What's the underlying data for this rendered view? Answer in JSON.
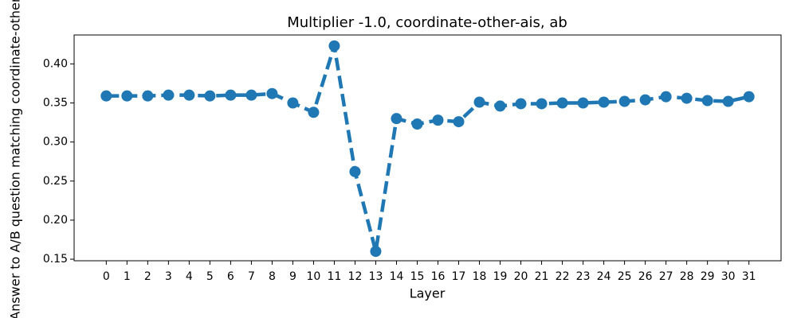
{
  "chart_data": {
    "type": "line",
    "title": "Multiplier -1.0, coordinate-other-ais, ab",
    "xlabel": "Layer",
    "ylabel": "Answer to A/B question matching coordinate-other-ais",
    "x": [
      0,
      1,
      2,
      3,
      4,
      5,
      6,
      7,
      8,
      9,
      10,
      11,
      12,
      13,
      14,
      15,
      16,
      17,
      18,
      19,
      20,
      21,
      22,
      23,
      24,
      25,
      26,
      27,
      28,
      29,
      30,
      31
    ],
    "series": [
      {
        "color": "#1f77b4",
        "values": [
          0.359,
          0.359,
          0.359,
          0.36,
          0.36,
          0.359,
          0.36,
          0.36,
          0.362,
          0.35,
          0.338,
          0.423,
          0.262,
          0.16,
          0.33,
          0.323,
          0.328,
          0.326,
          0.351,
          0.346,
          0.349,
          0.349,
          0.35,
          0.35,
          0.351,
          0.352,
          0.354,
          0.358,
          0.356,
          0.353,
          0.352,
          0.358
        ]
      }
    ],
    "xlim": [
      -1.55,
      32.55
    ],
    "xticks": [
      0,
      1,
      2,
      3,
      4,
      5,
      6,
      7,
      8,
      9,
      10,
      11,
      12,
      13,
      14,
      15,
      16,
      17,
      18,
      19,
      20,
      21,
      22,
      23,
      24,
      25,
      26,
      27,
      28,
      29,
      30,
      31
    ],
    "ylim": [
      0.148,
      0.437
    ],
    "yticks": [
      0.15,
      {
        "value": 0.2,
        "label": "0.20"
      },
      0.25,
      {
        "value": 0.3,
        "label": "0.30"
      },
      0.35,
      {
        "value": 0.4,
        "label": "0.40"
      }
    ],
    "line_style": "dashed"
  }
}
